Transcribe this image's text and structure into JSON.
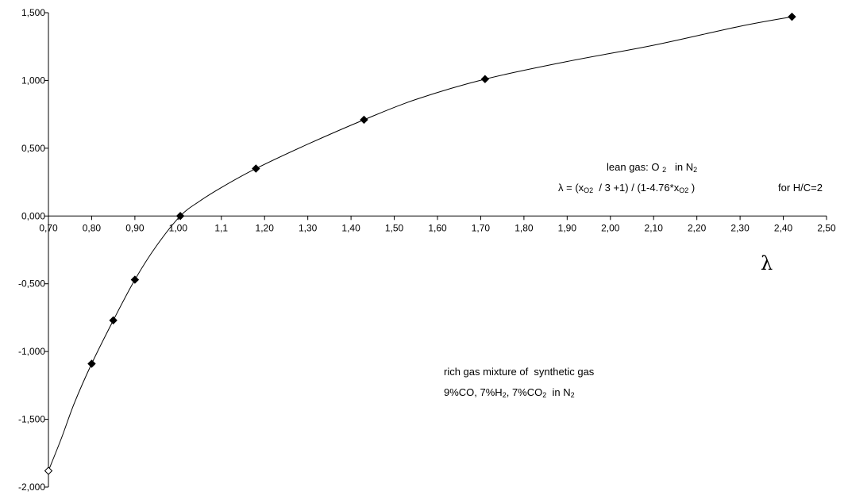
{
  "chart_data": {
    "type": "line",
    "x_tick_labels": [
      "0,70",
      "0,80",
      "0,90",
      "1,00",
      "1,1",
      "1,20",
      "1,30",
      "1,40",
      "1,50",
      "1,60",
      "1,70",
      "1,80",
      "1,90",
      "2,00",
      "2,10",
      "2,20",
      "2,30",
      "2,40",
      "2,50"
    ],
    "y_tick_labels": [
      "1,500",
      "1,000",
      "0,500",
      "0,000",
      "-0,500",
      "-1,000",
      "-1,500",
      "-2,000"
    ],
    "xlim": [
      0.7,
      2.5
    ],
    "ylim": [
      -2.0,
      1.5
    ],
    "xlabel": "λ",
    "grid": false,
    "series": [
      {
        "color": "#000000",
        "markers_filled": [
          {
            "x": 0.8,
            "y": -1.09
          },
          {
            "x": 0.85,
            "y": -0.77
          },
          {
            "x": 0.9,
            "y": -0.47
          },
          {
            "x": 1.005,
            "y": 0.0
          },
          {
            "x": 1.18,
            "y": 0.35
          },
          {
            "x": 1.43,
            "y": 0.71
          },
          {
            "x": 1.71,
            "y": 1.01
          },
          {
            "x": 2.42,
            "y": 1.47
          }
        ],
        "markers_open": [
          {
            "x": 0.7,
            "y": -1.88
          }
        ],
        "curve": [
          {
            "x": 0.7,
            "y": -1.88
          },
          {
            "x": 0.73,
            "y": -1.64
          },
          {
            "x": 0.76,
            "y": -1.38
          },
          {
            "x": 0.8,
            "y": -1.09
          },
          {
            "x": 0.85,
            "y": -0.77
          },
          {
            "x": 0.9,
            "y": -0.47
          },
          {
            "x": 0.95,
            "y": -0.22
          },
          {
            "x": 1.005,
            "y": 0.0
          },
          {
            "x": 1.05,
            "y": 0.11
          },
          {
            "x": 1.1,
            "y": 0.21
          },
          {
            "x": 1.18,
            "y": 0.35
          },
          {
            "x": 1.3,
            "y": 0.53
          },
          {
            "x": 1.43,
            "y": 0.71
          },
          {
            "x": 1.55,
            "y": 0.86
          },
          {
            "x": 1.71,
            "y": 1.01
          },
          {
            "x": 1.9,
            "y": 1.14
          },
          {
            "x": 2.1,
            "y": 1.26
          },
          {
            "x": 2.3,
            "y": 1.4
          },
          {
            "x": 2.42,
            "y": 1.47
          }
        ]
      }
    ],
    "annotations": {
      "lean_line1_prefix": "lean gas: O ",
      "lean_line1_sub1": "2",
      "lean_line1_mid": "   in N",
      "lean_line1_sub2": "2",
      "formula_prefix": "λ = (x",
      "formula_sub1": "O2",
      "formula_mid": "  / 3 +1) / (1-4.76*x",
      "formula_sub2": "O2",
      "formula_end": " )",
      "formula_note": "for H/C=2",
      "rich_line1": "rich gas mixture of  synthetic gas",
      "rich_line2_a": "9%CO, 7%H",
      "rich_line2_sub1": "2",
      "rich_line2_b": ", 7%CO",
      "rich_line2_sub2": "2",
      "rich_line2_c": "  in N",
      "rich_line2_sub3": "2"
    }
  }
}
